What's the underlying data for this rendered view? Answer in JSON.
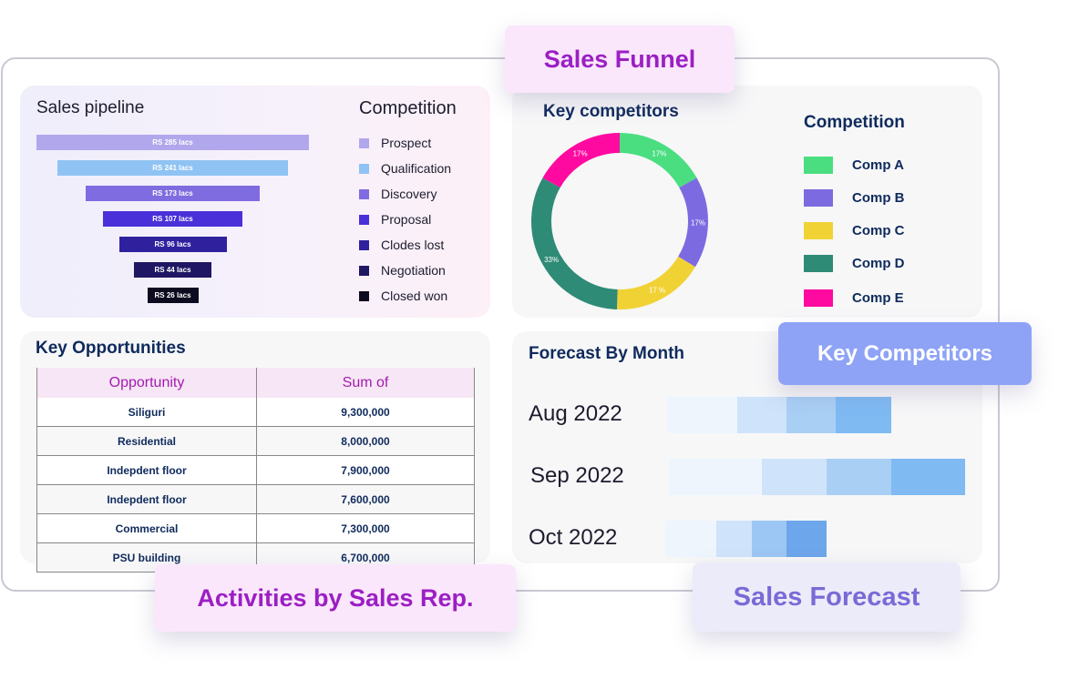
{
  "labels": {
    "sales_funnel": "Sales Funnel",
    "key_competitors": "Key Competitors",
    "activities": "Activities by Sales Rep.",
    "sales_forecast": "Sales Forecast"
  },
  "pipeline": {
    "title": "Sales pipeline",
    "legend_title": "Competition",
    "stages": [
      {
        "value": "RS 285 lacs",
        "name": "Prospect",
        "color": "#b1a7ec"
      },
      {
        "value": "RS 241 lacs",
        "name": "Qualification",
        "color": "#8fc3f3"
      },
      {
        "value": "RS 173 lacs",
        "name": "Discovery",
        "color": "#7f6ce0"
      },
      {
        "value": "RS 107 lacs",
        "name": "Proposal",
        "color": "#4a30d9"
      },
      {
        "value": "RS 96 lacs",
        "name": "Clodes lost",
        "color": "#2f219e"
      },
      {
        "value": "RS 44 lacs",
        "name": "Negotiation",
        "color": "#1f1763"
      },
      {
        "value": "RS 26 lacs",
        "name": "Closed won",
        "color": "#0d0b1f"
      }
    ]
  },
  "competitors": {
    "title": "Key competitors",
    "legend_title": "Competition",
    "items": [
      {
        "name": "Comp A",
        "share": 17,
        "label": "17%",
        "color": "#4ade80"
      },
      {
        "name": "Comp B",
        "share": 17,
        "label": "17%",
        "color": "#7c6be0"
      },
      {
        "name": "Comp C",
        "share": 17,
        "label": "17 %",
        "color": "#f1d235"
      },
      {
        "name": "Comp D",
        "share": 33,
        "label": "33%",
        "color": "#2e8b76"
      },
      {
        "name": "Comp E",
        "share": 17,
        "label": "17%",
        "color": "#ff0aa0"
      }
    ]
  },
  "opportunities": {
    "title": "Key Opportunities",
    "columns": [
      "Opportunity",
      "Sum of"
    ],
    "rows": [
      [
        "Siliguri",
        "9,300,000"
      ],
      [
        "Residential",
        "8,000,000"
      ],
      [
        "Indepdent floor",
        "7,900,000"
      ],
      [
        "Indepdent floor",
        "7,600,000"
      ],
      [
        "Commercial",
        "7,300,000"
      ],
      [
        "PSU building",
        "6,700,000"
      ]
    ]
  },
  "forecast": {
    "title": "Forecast By Month",
    "months": [
      {
        "label": "Aug 2022",
        "segments": [
          77,
          54,
          54,
          61
        ],
        "colors": [
          "#eef5fd",
          "#cfe4fa",
          "#a9cff5",
          "#7fbaf3"
        ]
      },
      {
        "label": "Sep 2022",
        "segments": [
          102,
          71,
          71,
          81
        ],
        "colors": [
          "#eef5fd",
          "#cfe4fa",
          "#a9cff5",
          "#7fbaf3"
        ]
      },
      {
        "label": "Oct 2022",
        "segments": [
          56,
          39,
          38,
          44
        ],
        "colors": [
          "#eef5fd",
          "#cfe4fa",
          "#9cc6f4",
          "#6da6ea"
        ]
      }
    ]
  }
}
